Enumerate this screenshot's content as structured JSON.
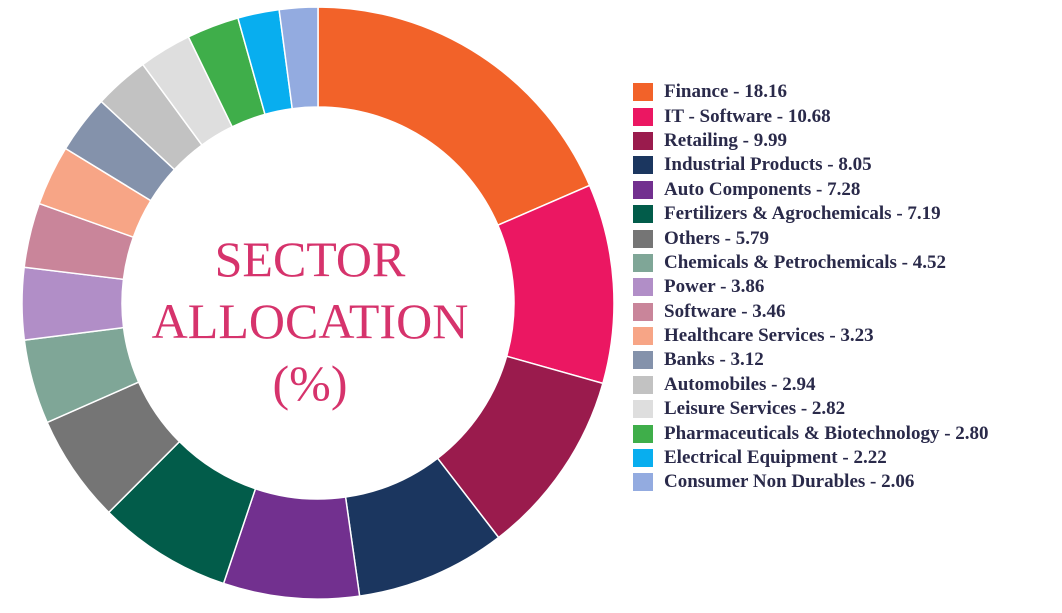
{
  "chart_data": {
    "type": "pie",
    "title": "SECTOR ALLOCATION (%)",
    "title_lines": [
      "SECTOR",
      "ALLOCATION",
      "(%)"
    ],
    "title_color": "#d6336c",
    "legend_position": "right",
    "slices": [
      {
        "label": "Finance",
        "value": 18.16,
        "color": "#f26229",
        "legend_text": "Finance - 18.16"
      },
      {
        "label": "IT - Software",
        "value": 10.68,
        "color": "#eb1762",
        "legend_text": "IT - Software - 10.68"
      },
      {
        "label": "Retailing",
        "value": 9.99,
        "color": "#9a1b4d",
        "legend_text": "Retailing - 9.99"
      },
      {
        "label": "Industrial Products",
        "value": 8.05,
        "color": "#1b365f",
        "legend_text": "Industrial Products - 8.05"
      },
      {
        "label": "Auto Components",
        "value": 7.28,
        "color": "#72308f",
        "legend_text": "Auto Components - 7.28"
      },
      {
        "label": "Fertilizers & Agrochemicals",
        "value": 7.19,
        "color": "#025c4a",
        "legend_text": "Fertilizers & Agrochemicals - 7.19"
      },
      {
        "label": "Others",
        "value": 5.79,
        "color": "#757575",
        "legend_text": "Others - 5.79"
      },
      {
        "label": "Chemicals & Petrochemicals",
        "value": 4.52,
        "color": "#7fa697",
        "legend_text": "Chemicals & Petrochemicals - 4.52"
      },
      {
        "label": "Power",
        "value": 3.86,
        "color": "#b18ec7",
        "legend_text": "Power - 3.86"
      },
      {
        "label": "Software",
        "value": 3.46,
        "color": "#c9859a",
        "legend_text": "Software - 3.46"
      },
      {
        "label": "Healthcare Services",
        "value": 3.23,
        "color": "#f7a586",
        "legend_text": "Healthcare Services - 3.23"
      },
      {
        "label": "Banks",
        "value": 3.12,
        "color": "#8492ab",
        "legend_text": "Banks - 3.12"
      },
      {
        "label": "Automobiles",
        "value": 2.94,
        "color": "#c2c2c2",
        "legend_text": "Automobiles - 2.94"
      },
      {
        "label": "Leisure Services",
        "value": 2.82,
        "color": "#dedede",
        "legend_text": "Leisure Services - 2.82"
      },
      {
        "label": "Pharmaceuticals & Biotechnology",
        "value": 2.8,
        "color": "#3fae4a",
        "legend_text": "Pharmaceuticals & Biotechnology - 2.80"
      },
      {
        "label": "Electrical Equipment",
        "value": 2.22,
        "color": "#08aeef",
        "legend_text": "Electrical Equipment - 2.22"
      },
      {
        "label": "Consumer Non Durables",
        "value": 2.06,
        "color": "#93abe0",
        "legend_text": "Consumer Non Durables - 2.06"
      }
    ]
  }
}
